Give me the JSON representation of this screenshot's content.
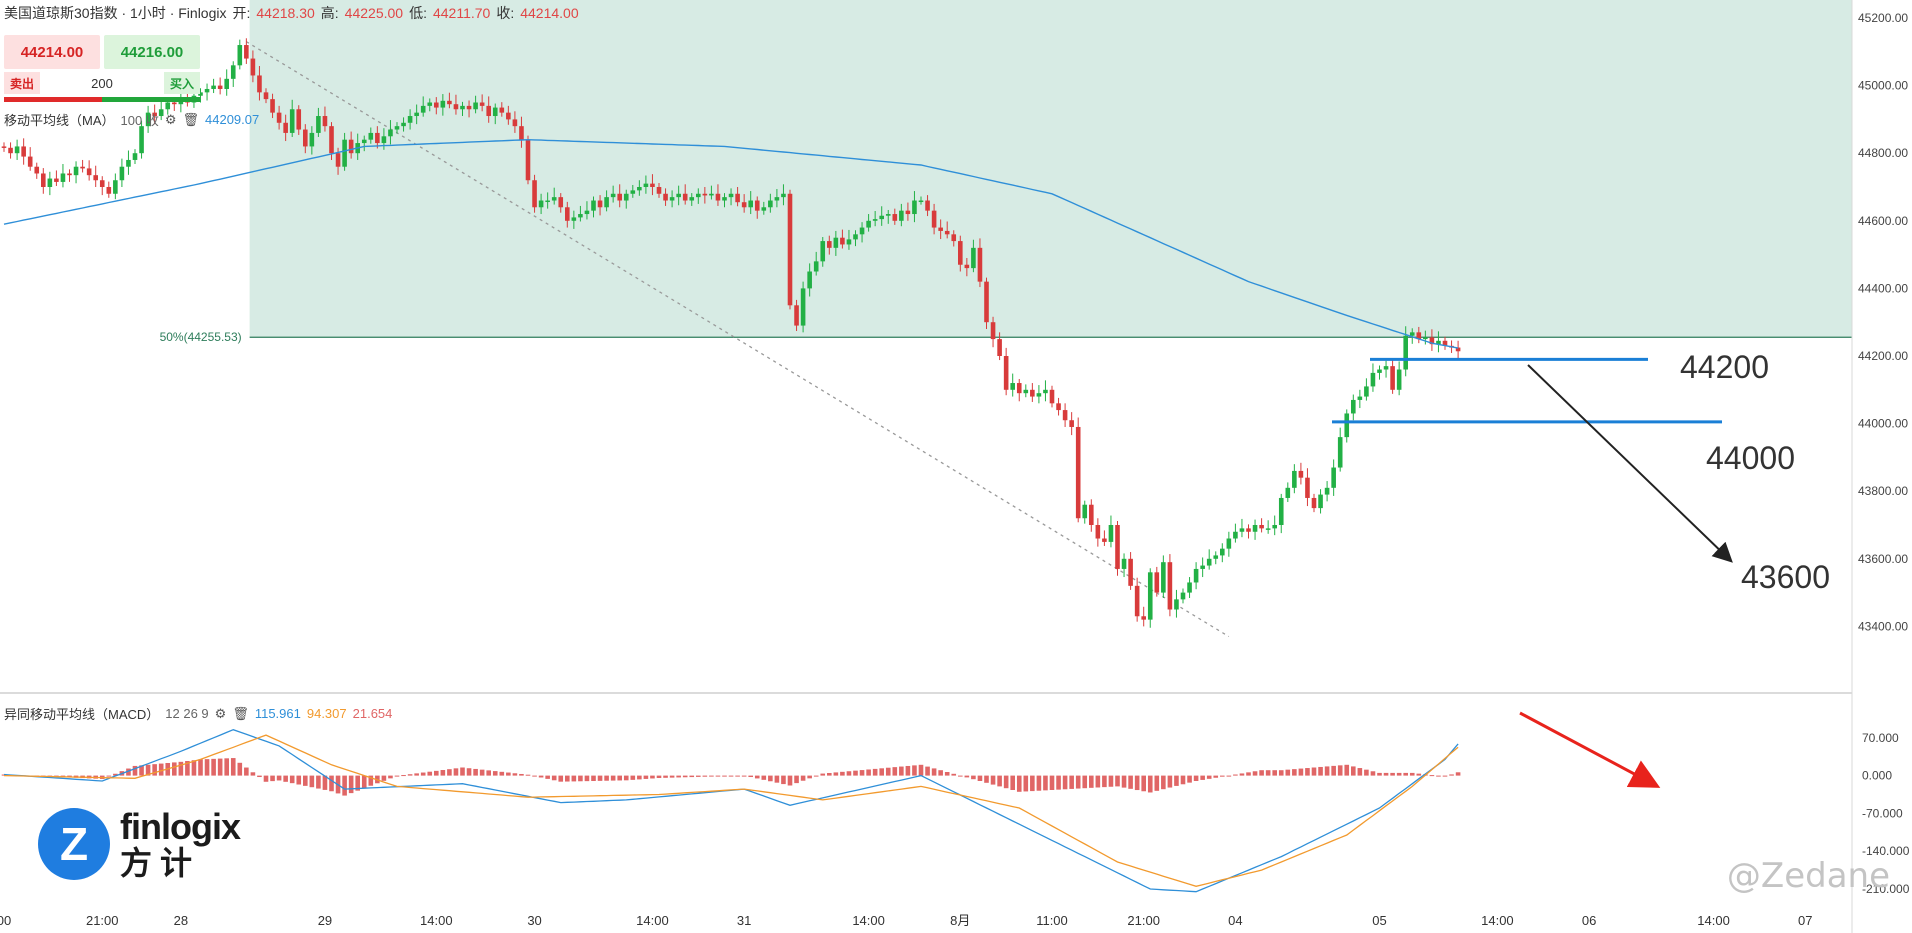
{
  "header": {
    "instrument": "美国道琼斯30指数 · 1小时 · Finlogix",
    "open_label": "开:",
    "open_value": "44218.30",
    "high_label": "高:",
    "high_value": "44225.00",
    "low_label": "低:",
    "low_value": "44211.70",
    "close_label": "收:",
    "close_value": "44214.00"
  },
  "trade": {
    "sell_price": "44214.00",
    "buy_price": "44216.00",
    "sell_label": "卖出",
    "buy_label": "买入",
    "quantity": "200"
  },
  "ma_indicator": {
    "label": "移动平均线（MA）",
    "period": "100 收",
    "value": "44209.07",
    "color": "#2f8fd8"
  },
  "macd_indicator": {
    "label": "异同移动平均线（MACD）",
    "params": "12 26 9",
    "macd_value": "115.961",
    "signal_value": "94.307",
    "hist_value": "21.654",
    "macd_color": "#2f8fd8",
    "signal_color": "#f29a2e",
    "hist_color": "#e06666"
  },
  "colors": {
    "up": "#22b045",
    "down": "#d83b3b",
    "zone": "#d7ebe4",
    "level_line": "#1a7fd6",
    "fib_line": "#2e7d5b"
  },
  "watermark": "@Zedane",
  "logo": {
    "brand": "finlogix",
    "cn": "方计",
    "mark": "Z"
  },
  "chart_data": [
    {
      "type": "candlestick",
      "title": "美国道琼斯30指数 · 1小时",
      "ylim": [
        43200,
        45200
      ],
      "y_ticks": [
        "45200.00",
        "45000.00",
        "44800.00",
        "44600.00",
        "44400.00",
        "44200.00",
        "44000.00",
        "43800.00",
        "43600.00",
        "43400.00"
      ],
      "x_ticks": [
        {
          "label": "00",
          "i": 0
        },
        {
          "label": "21:00",
          "i": 15
        },
        {
          "label": "28",
          "i": 27
        },
        {
          "label": "29",
          "i": 49
        },
        {
          "label": "14:00",
          "i": 66
        },
        {
          "label": "30",
          "i": 81
        },
        {
          "label": "14:00",
          "i": 99
        },
        {
          "label": "31",
          "i": 113
        },
        {
          "label": "14:00",
          "i": 132
        },
        {
          "label": "8月",
          "i": 146
        },
        {
          "label": "11:00",
          "i": 160
        },
        {
          "label": "21:00",
          "i": 174
        },
        {
          "label": "04",
          "i": 188
        },
        {
          "label": "05",
          "i": 210
        },
        {
          "label": "14:00",
          "i": 228
        },
        {
          "label": "06",
          "i": 242
        },
        {
          "label": "14:00",
          "i": 261
        },
        {
          "label": "07",
          "i": 275
        }
      ],
      "close": [
        44816,
        44800,
        44820,
        44790,
        44760,
        44740,
        44700,
        44725,
        44715,
        44740,
        44735,
        44760,
        44755,
        44735,
        44720,
        44700,
        44680,
        44720,
        44760,
        44780,
        44800,
        44880,
        44920,
        44910,
        44930,
        44950,
        44945,
        44960,
        44950,
        44970,
        44980,
        44990,
        45000,
        44990,
        45020,
        45060,
        45120,
        45080,
        45030,
        44980,
        44960,
        44920,
        44890,
        44860,
        44930,
        44870,
        44820,
        44860,
        44910,
        44880,
        44800,
        44760,
        44840,
        44800,
        44830,
        44840,
        44860,
        44830,
        44850,
        44870,
        44880,
        44890,
        44910,
        44920,
        44940,
        44950,
        44935,
        44955,
        44945,
        44930,
        44940,
        44930,
        44950,
        44940,
        44910,
        44935,
        44920,
        44900,
        44880,
        44840,
        44720,
        44640,
        44660,
        44660,
        44670,
        44640,
        44600,
        44610,
        44620,
        44630,
        44660,
        44640,
        44670,
        44680,
        44660,
        44680,
        44690,
        44700,
        44710,
        44700,
        44680,
        44660,
        44670,
        44680,
        44660,
        44670,
        44680,
        44675,
        44680,
        44660,
        44670,
        44680,
        44655,
        44640,
        44660,
        44630,
        44640,
        44660,
        44670,
        44680,
        44350,
        44290,
        44400,
        44450,
        44480,
        44540,
        44520,
        44550,
        44530,
        44545,
        44560,
        44580,
        44600,
        44605,
        44615,
        44620,
        44600,
        44630,
        44620,
        44660,
        44660,
        44630,
        44580,
        44570,
        44560,
        44540,
        44470,
        44460,
        44520,
        44420,
        44300,
        44250,
        44200,
        44100,
        44120,
        44090,
        44100,
        44080,
        44090,
        44100,
        44060,
        44040,
        44010,
        43990,
        43720,
        43760,
        43700,
        43660,
        43650,
        43700,
        43570,
        43600,
        43520,
        43430,
        43420,
        43560,
        43500,
        43590,
        43450,
        43480,
        43500,
        43530,
        43570,
        43580,
        43600,
        43610,
        43630,
        43660,
        43680,
        43690,
        43680,
        43700,
        43690,
        43690,
        43700,
        43780,
        43810,
        43860,
        43840,
        43780,
        43750,
        43790,
        43810,
        43870,
        43960,
        44030,
        44070,
        44080,
        44110,
        44150,
        44160,
        44170,
        44100,
        44160,
        44260,
        44270,
        44250,
        44255,
        44235,
        44245,
        44230,
        44225,
        44214
      ],
      "open_first": 44820,
      "candles_note": "1-hour candles; closes estimated from the price axis",
      "fib_level": {
        "label": "50%(44255.53)",
        "value": 44255.53
      },
      "levels": [
        {
          "label": "44200",
          "value": 44190
        },
        {
          "label": "44000",
          "value": 44005
        },
        {
          "label": "43600",
          "value": 43600
        }
      ],
      "ma100_anchor": [
        [
          0,
          44590
        ],
        [
          30,
          44710
        ],
        [
          55,
          44820
        ],
        [
          80,
          44840
        ],
        [
          110,
          44820
        ],
        [
          140,
          44765
        ],
        [
          160,
          44680
        ],
        [
          175,
          44550
        ],
        [
          190,
          44420
        ],
        [
          205,
          44320
        ],
        [
          218,
          44238
        ],
        [
          226,
          44209
        ]
      ]
    },
    {
      "type": "macd",
      "title": "异同移动平均线（MACD）",
      "ylim": [
        -210,
        140
      ],
      "y_ticks": [
        "70.000",
        "0.000",
        "-70.000",
        "-140.000",
        "-210.000"
      ],
      "macd": [
        [
          0,
          2
        ],
        [
          15,
          -10
        ],
        [
          27,
          45
        ],
        [
          35,
          85
        ],
        [
          42,
          55
        ],
        [
          52,
          -25
        ],
        [
          70,
          -15
        ],
        [
          85,
          -50
        ],
        [
          95,
          -45
        ],
        [
          113,
          -25
        ],
        [
          120,
          -55
        ],
        [
          140,
          0
        ],
        [
          160,
          -120
        ],
        [
          175,
          -210
        ],
        [
          182,
          -215
        ],
        [
          195,
          -150
        ],
        [
          210,
          -60
        ],
        [
          220,
          30
        ],
        [
          226,
          116
        ]
      ],
      "signal": [
        [
          0,
          0
        ],
        [
          20,
          -5
        ],
        [
          30,
          30
        ],
        [
          40,
          75
        ],
        [
          50,
          20
        ],
        [
          60,
          -20
        ],
        [
          80,
          -40
        ],
        [
          100,
          -35
        ],
        [
          113,
          -25
        ],
        [
          125,
          -45
        ],
        [
          140,
          -20
        ],
        [
          155,
          -60
        ],
        [
          170,
          -160
        ],
        [
          182,
          -205
        ],
        [
          192,
          -175
        ],
        [
          205,
          -110
        ],
        [
          215,
          -20
        ],
        [
          226,
          94
        ]
      ],
      "histogram_last": 21.654
    }
  ]
}
